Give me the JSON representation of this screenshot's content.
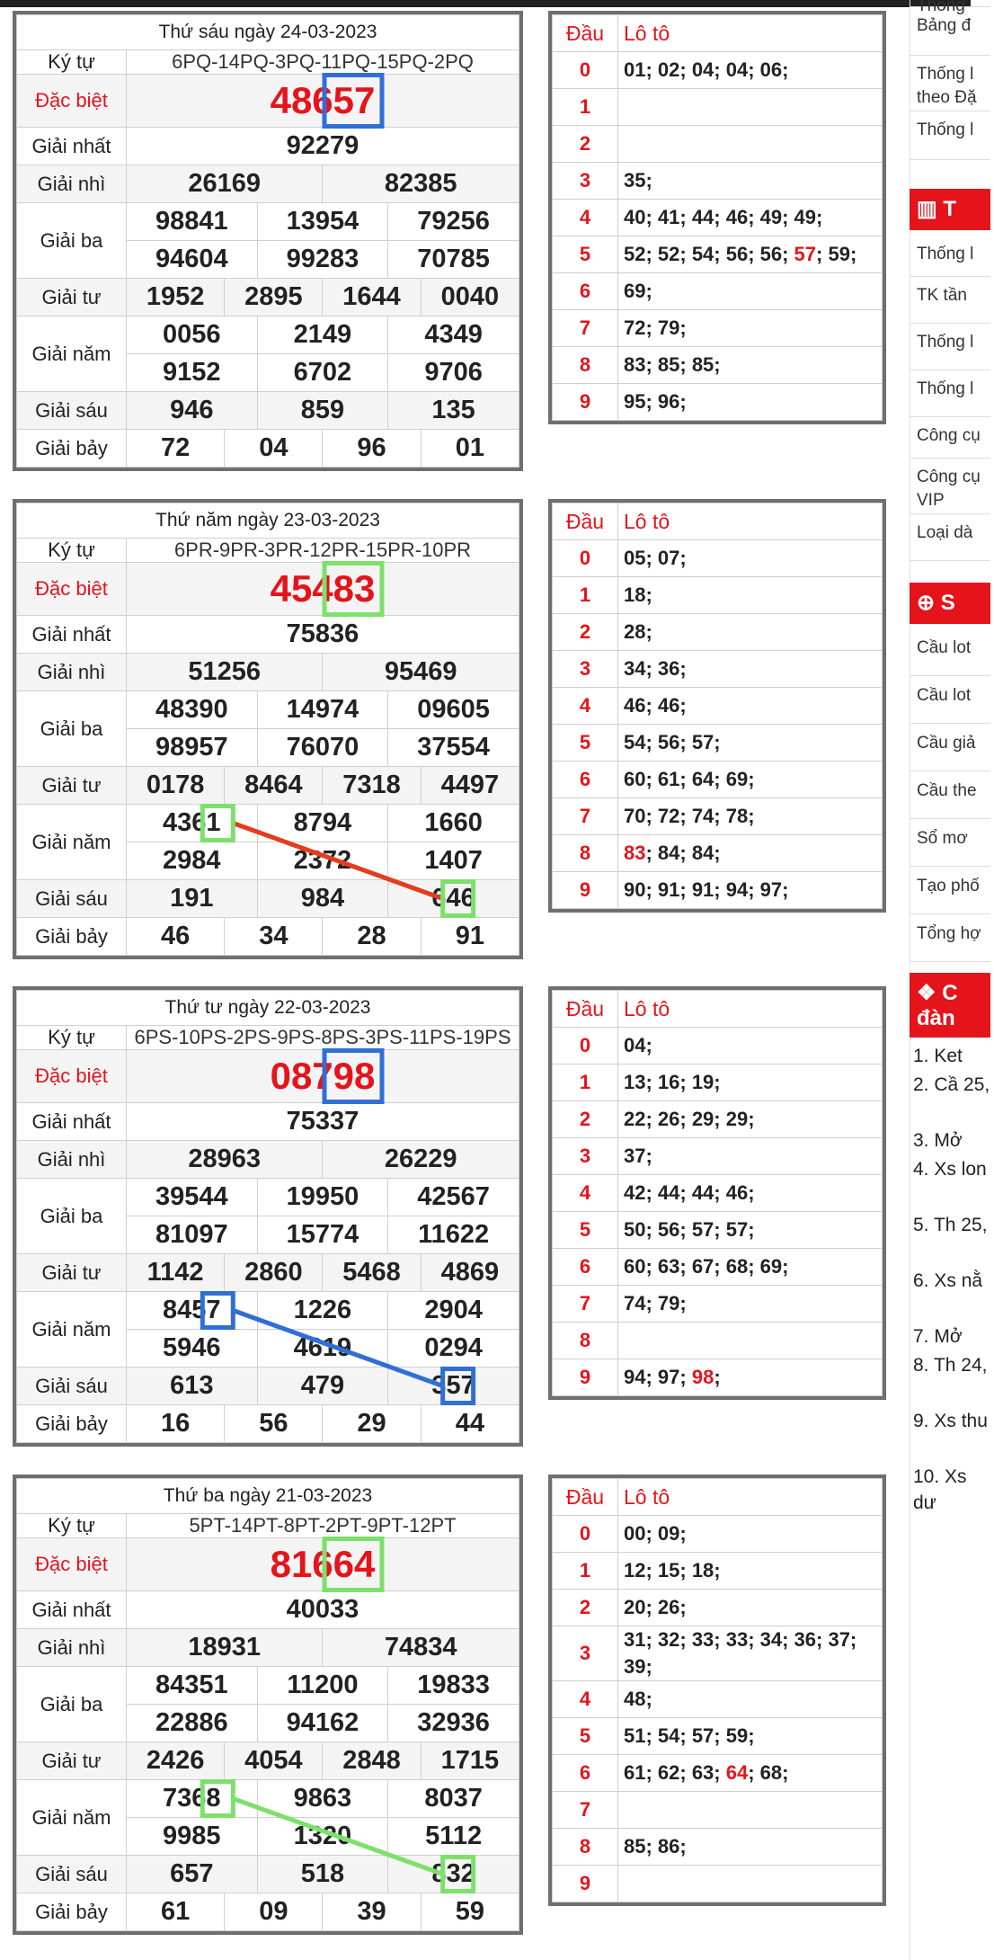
{
  "draws": [
    {
      "date": "Thứ sáu ngày 24-03-2023",
      "kytu": "6PQ-14PQ-3PQ-11PQ-15PQ-2PQ",
      "special": "48657",
      "first": "92279",
      "second": [
        "26169",
        "82385"
      ],
      "third": [
        "98841",
        "13954",
        "79256",
        "94604",
        "99283",
        "70785"
      ],
      "fourth": [
        "1952",
        "2895",
        "1644",
        "0040"
      ],
      "fifth": [
        "0056",
        "2149",
        "4349",
        "9152",
        "6702",
        "9706"
      ],
      "sixth": [
        "946",
        "859",
        "135"
      ],
      "seventh": [
        "72",
        "04",
        "96",
        "01"
      ],
      "loto": [
        "01; 02; 04; 04; 06;",
        "",
        "",
        "35;",
        "40; 41; 44; 46; 49; 49;",
        "52; 52; 54; 56; 56; 57; 59;",
        "69;",
        "72; 79;",
        "83; 85; 85;",
        "95; 96;"
      ]
    },
    {
      "date": "Thứ năm ngày 23-03-2023",
      "kytu": "6PR-9PR-3PR-12PR-15PR-10PR",
      "special": "45483",
      "first": "75836",
      "second": [
        "51256",
        "95469"
      ],
      "third": [
        "48390",
        "14974",
        "09605",
        "98957",
        "76070",
        "37554"
      ],
      "fourth": [
        "0178",
        "8464",
        "7318",
        "4497"
      ],
      "fifth": [
        "4361",
        "8794",
        "1660",
        "2984",
        "2372",
        "1407"
      ],
      "sixth": [
        "191",
        "984",
        "646"
      ],
      "seventh": [
        "46",
        "34",
        "28",
        "91"
      ],
      "loto": [
        "05; 07;",
        "18;",
        "28;",
        "34; 36;",
        "46; 46;",
        "54; 56; 57;",
        "60; 61; 64; 69;",
        "70; 72; 74; 78;",
        "83; 84; 84;",
        "90; 91; 91; 94; 97;"
      ]
    },
    {
      "date": "Thứ tư ngày 22-03-2023",
      "kytu": "6PS-10PS-2PS-9PS-8PS-3PS-11PS-19PS",
      "special": "08798",
      "first": "75337",
      "second": [
        "28963",
        "26229"
      ],
      "third": [
        "39544",
        "19950",
        "42567",
        "81097",
        "15774",
        "11622"
      ],
      "fourth": [
        "1142",
        "2860",
        "5468",
        "4869"
      ],
      "fifth": [
        "8457",
        "1226",
        "2904",
        "5946",
        "4619",
        "0294"
      ],
      "sixth": [
        "613",
        "479",
        "357"
      ],
      "seventh": [
        "16",
        "56",
        "29",
        "44"
      ],
      "loto": [
        "04;",
        "13; 16; 19;",
        "22; 26; 29; 29;",
        "37;",
        "42; 44; 44; 46;",
        "50; 56; 57; 57;",
        "60; 63; 67; 68; 69;",
        "74; 79;",
        "",
        "94; 97; 98;"
      ]
    },
    {
      "date": "Thứ ba ngày 21-03-2023",
      "kytu": "5PT-14PT-8PT-2PT-9PT-12PT",
      "special": "81664",
      "first": "40033",
      "second": [
        "18931",
        "74834"
      ],
      "third": [
        "84351",
        "11200",
        "19833",
        "22886",
        "94162",
        "32936"
      ],
      "fourth": [
        "2426",
        "4054",
        "2848",
        "1715"
      ],
      "fifth": [
        "7368",
        "9863",
        "8037",
        "9985",
        "1320",
        "5112"
      ],
      "sixth": [
        "657",
        "518",
        "832"
      ],
      "seventh": [
        "61",
        "09",
        "39",
        "59"
      ],
      "loto": [
        "00; 09;",
        "12; 15; 18;",
        "20; 26;",
        "31; 32; 33; 33; 34; 36; 37; 39;",
        "48;",
        "51; 54; 57; 59;",
        "61; 62; 63; 64; 68;",
        "",
        "85; 86;",
        ""
      ]
    }
  ],
  "labels": {
    "kytu": "Ký tự",
    "special": "Đặc biệt",
    "first": "Giải nhất",
    "second": "Giải nhì",
    "third": "Giải ba",
    "fourth": "Giải tư",
    "fifth": "Giải năm",
    "sixth": "Giải sáu",
    "seventh": "Giải bảy",
    "dau": "Đầu",
    "loto": "Lô tô"
  },
  "loto_highlights": [
    {
      "draw": 0,
      "row": 5,
      "value": "57"
    },
    {
      "draw": 1,
      "row": 8,
      "value": "83"
    },
    {
      "draw": 2,
      "row": 9,
      "value": "98"
    },
    {
      "draw": 3,
      "row": 6,
      "value": "64"
    }
  ],
  "overlay_colors": [
    "#2f6fd6",
    "#7de06b",
    "#2f6fd6",
    "#7de06b"
  ],
  "line_colors": [
    "",
    "#e23d1e",
    "#2f6fd6",
    "#7de06b"
  ],
  "colors": {
    "accent": "#e5141b",
    "border": "#6f6f6f"
  },
  "sidebar": {
    "top_items": [
      "Thống",
      "Bảng đ",
      "Thống l theo Đặ",
      "Thống l"
    ],
    "section1_title": "T",
    "section1_icon": "bar-chart-icon",
    "section1_items": [
      "Thống l",
      "TK tần",
      "Thống l",
      "Thống l",
      "Công cụ",
      "Công cụ VIP",
      "Loại dà"
    ],
    "section2_title": "S",
    "section2_icon": "search-plus-icon",
    "section2_items": [
      "Cầu lot",
      "Cầu lot",
      "Cầu giả",
      "Cầu the",
      "Sổ mơ",
      "Tạo phố",
      "Tổng hợ"
    ],
    "section3_title": "C đàn",
    "section3_icon": "users-icon",
    "section3_list": [
      "1. Ket",
      "2. Cầ 25,",
      "3. Mở",
      "4. Xs lon",
      "5. Th 25,",
      "6. Xs nằ",
      "7. Mở",
      "8. Th 24,",
      "9. Xs thu",
      "10. Xs dư"
    ]
  }
}
